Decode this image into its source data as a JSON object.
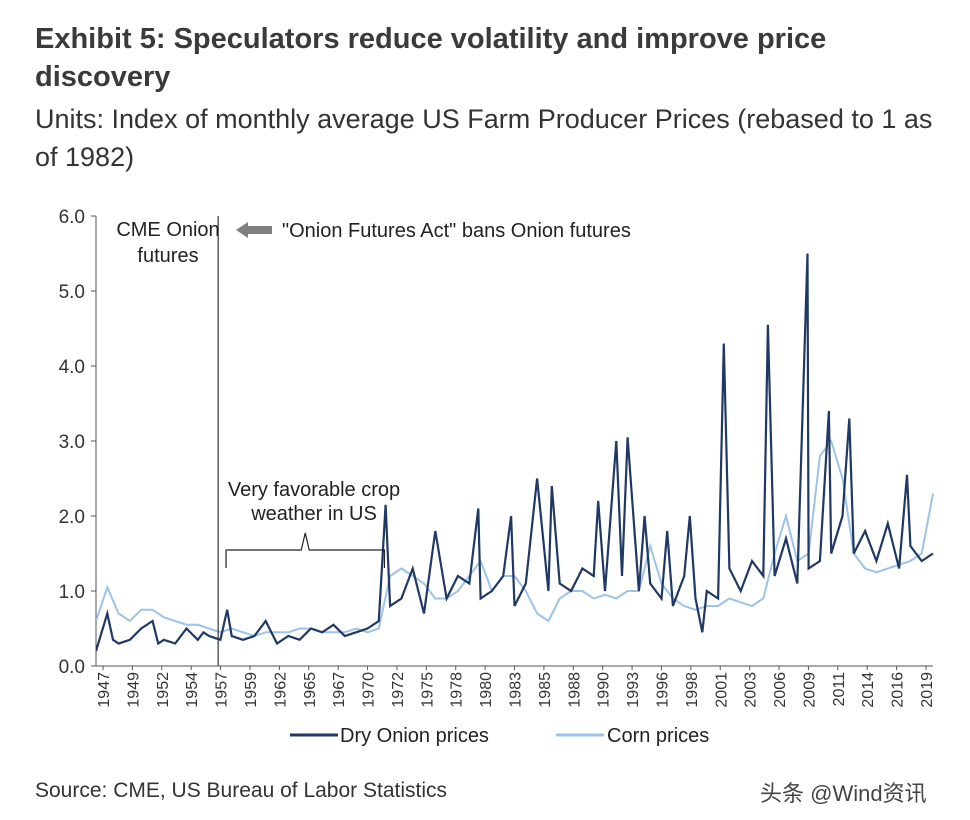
{
  "header": {
    "title": "Exhibit 5: Speculators reduce volatility and improve price discovery",
    "subtitle": "Units: Index of monthly average US Farm Producer Prices (rebased to 1 as of 1982)"
  },
  "footer": {
    "source": "Source: CME, US Bureau of Labor Statistics",
    "watermark": "头条 @Wind资讯"
  },
  "colors": {
    "onion": "#1f3864",
    "corn": "#9dc3e6",
    "axis": "#555555",
    "arrow": "#7f7f7f"
  },
  "chart_data": {
    "type": "line",
    "title": "Exhibit 5: Speculators reduce volatility and improve price discovery",
    "ylabel": "Index of monthly average US Farm Producer Prices (rebased to 1 as of 1982)",
    "xlabel": "",
    "ylim": [
      0.0,
      6.0
    ],
    "xlim": [
      1947,
      2021
    ],
    "y_ticks": [
      "0.0",
      "1.0",
      "2.0",
      "3.0",
      "4.0",
      "5.0",
      "6.0"
    ],
    "x_ticks": [
      "1947",
      "1949",
      "1952",
      "1954",
      "1957",
      "1959",
      "1962",
      "1965",
      "1967",
      "1970",
      "1972",
      "1975",
      "1978",
      "1980",
      "1983",
      "1985",
      "1988",
      "1990",
      "1993",
      "1996",
      "1998",
      "2001",
      "2003",
      "2006",
      "2009",
      "2011",
      "2014",
      "2016",
      "2019"
    ],
    "legend_position": "bottom",
    "series": [
      {
        "name": "Dry Onion prices",
        "x": [
          1947,
          1948,
          1948.5,
          1949,
          1950,
          1951,
          1952,
          1952.5,
          1953,
          1954,
          1955,
          1956,
          1956.5,
          1957,
          1958,
          1958.6,
          1959,
          1960,
          1961,
          1962,
          1963,
          1964,
          1965,
          1966,
          1967,
          1968,
          1969,
          1970,
          1971,
          1972,
          1972.6,
          1973,
          1974,
          1975,
          1976,
          1977,
          1978,
          1979,
          1980,
          1980.8,
          1981,
          1982,
          1983,
          1983.7,
          1984,
          1985,
          1986,
          1987,
          1987.3,
          1988,
          1989,
          1990,
          1991,
          1991.4,
          1992,
          1993,
          1993.5,
          1994,
          1995,
          1995.5,
          1996,
          1997,
          1997.5,
          1998,
          1999,
          1999.5,
          2000,
          2000.6,
          2001,
          2002,
          2002.5,
          2003,
          2004,
          2005,
          2006,
          2006.4,
          2007,
          2008,
          2009,
          2009.9,
          2010,
          2011,
          2011.8,
          2012,
          2013,
          2013.6,
          2014,
          2015,
          2016,
          2017,
          2018,
          2018.7,
          2019,
          2020,
          2021
        ],
        "y": [
          0.2,
          0.7,
          0.35,
          0.3,
          0.35,
          0.5,
          0.6,
          0.3,
          0.35,
          0.3,
          0.5,
          0.35,
          0.45,
          0.4,
          0.35,
          0.75,
          0.4,
          0.35,
          0.4,
          0.6,
          0.3,
          0.4,
          0.35,
          0.5,
          0.45,
          0.55,
          0.4,
          0.45,
          0.5,
          0.6,
          2.15,
          0.8,
          0.9,
          1.3,
          0.7,
          1.8,
          0.9,
          1.2,
          1.1,
          2.1,
          0.9,
          1.0,
          1.2,
          2.0,
          0.8,
          1.1,
          2.5,
          1.0,
          2.4,
          1.1,
          1.0,
          1.3,
          1.2,
          2.2,
          1.0,
          3.0,
          1.2,
          3.05,
          1.0,
          2.0,
          1.1,
          0.9,
          1.8,
          0.8,
          1.2,
          2.0,
          0.9,
          0.45,
          1.0,
          0.9,
          4.3,
          1.3,
          1.0,
          1.4,
          1.2,
          4.55,
          1.2,
          1.7,
          1.1,
          5.5,
          1.3,
          1.4,
          3.4,
          1.5,
          2.0,
          3.3,
          1.5,
          1.8,
          1.4,
          1.9,
          1.3,
          2.55,
          1.6,
          1.4,
          1.5
        ]
      },
      {
        "name": "Corn prices",
        "x": [
          1947,
          1948,
          1949,
          1950,
          1951,
          1952,
          1953,
          1954,
          1955,
          1956,
          1957,
          1958,
          1959,
          1960,
          1961,
          1962,
          1963,
          1964,
          1965,
          1966,
          1967,
          1968,
          1969,
          1970,
          1971,
          1972,
          1973,
          1974,
          1975,
          1976,
          1977,
          1978,
          1979,
          1980,
          1981,
          1982,
          1983,
          1984,
          1985,
          1986,
          1987,
          1988,
          1989,
          1990,
          1991,
          1992,
          1993,
          1994,
          1995,
          1996,
          1997,
          1998,
          1999,
          2000,
          2001,
          2002,
          2003,
          2004,
          2005,
          2006,
          2007,
          2008,
          2009,
          2010,
          2011,
          2012,
          2013,
          2014,
          2015,
          2016,
          2017,
          2018,
          2019,
          2020,
          2021
        ],
        "y": [
          0.6,
          1.05,
          0.7,
          0.6,
          0.75,
          0.75,
          0.65,
          0.6,
          0.55,
          0.55,
          0.5,
          0.45,
          0.5,
          0.45,
          0.4,
          0.45,
          0.45,
          0.45,
          0.5,
          0.5,
          0.45,
          0.45,
          0.45,
          0.5,
          0.45,
          0.5,
          1.2,
          1.3,
          1.2,
          1.1,
          0.9,
          0.9,
          1.0,
          1.2,
          1.4,
          1.0,
          1.2,
          1.2,
          1.0,
          0.7,
          0.6,
          0.9,
          1.0,
          1.0,
          0.9,
          0.95,
          0.9,
          1.0,
          1.0,
          1.6,
          1.1,
          0.9,
          0.8,
          0.75,
          0.8,
          0.8,
          0.9,
          0.85,
          0.8,
          0.9,
          1.5,
          2.0,
          1.4,
          1.5,
          2.8,
          3.0,
          2.5,
          1.5,
          1.3,
          1.25,
          1.3,
          1.35,
          1.4,
          1.5,
          2.3
        ]
      }
    ],
    "annotations": [
      {
        "id": "cme",
        "lines": [
          "CME Onion",
          "futures"
        ],
        "x": 1957.8
      },
      {
        "id": "act",
        "text": "\"Onion Futures Act\" bans Onion futures"
      },
      {
        "id": "crop",
        "lines": [
          "Very favorable crop",
          "weather in US"
        ],
        "range": [
          1958.5,
          1972.5
        ]
      }
    ]
  }
}
